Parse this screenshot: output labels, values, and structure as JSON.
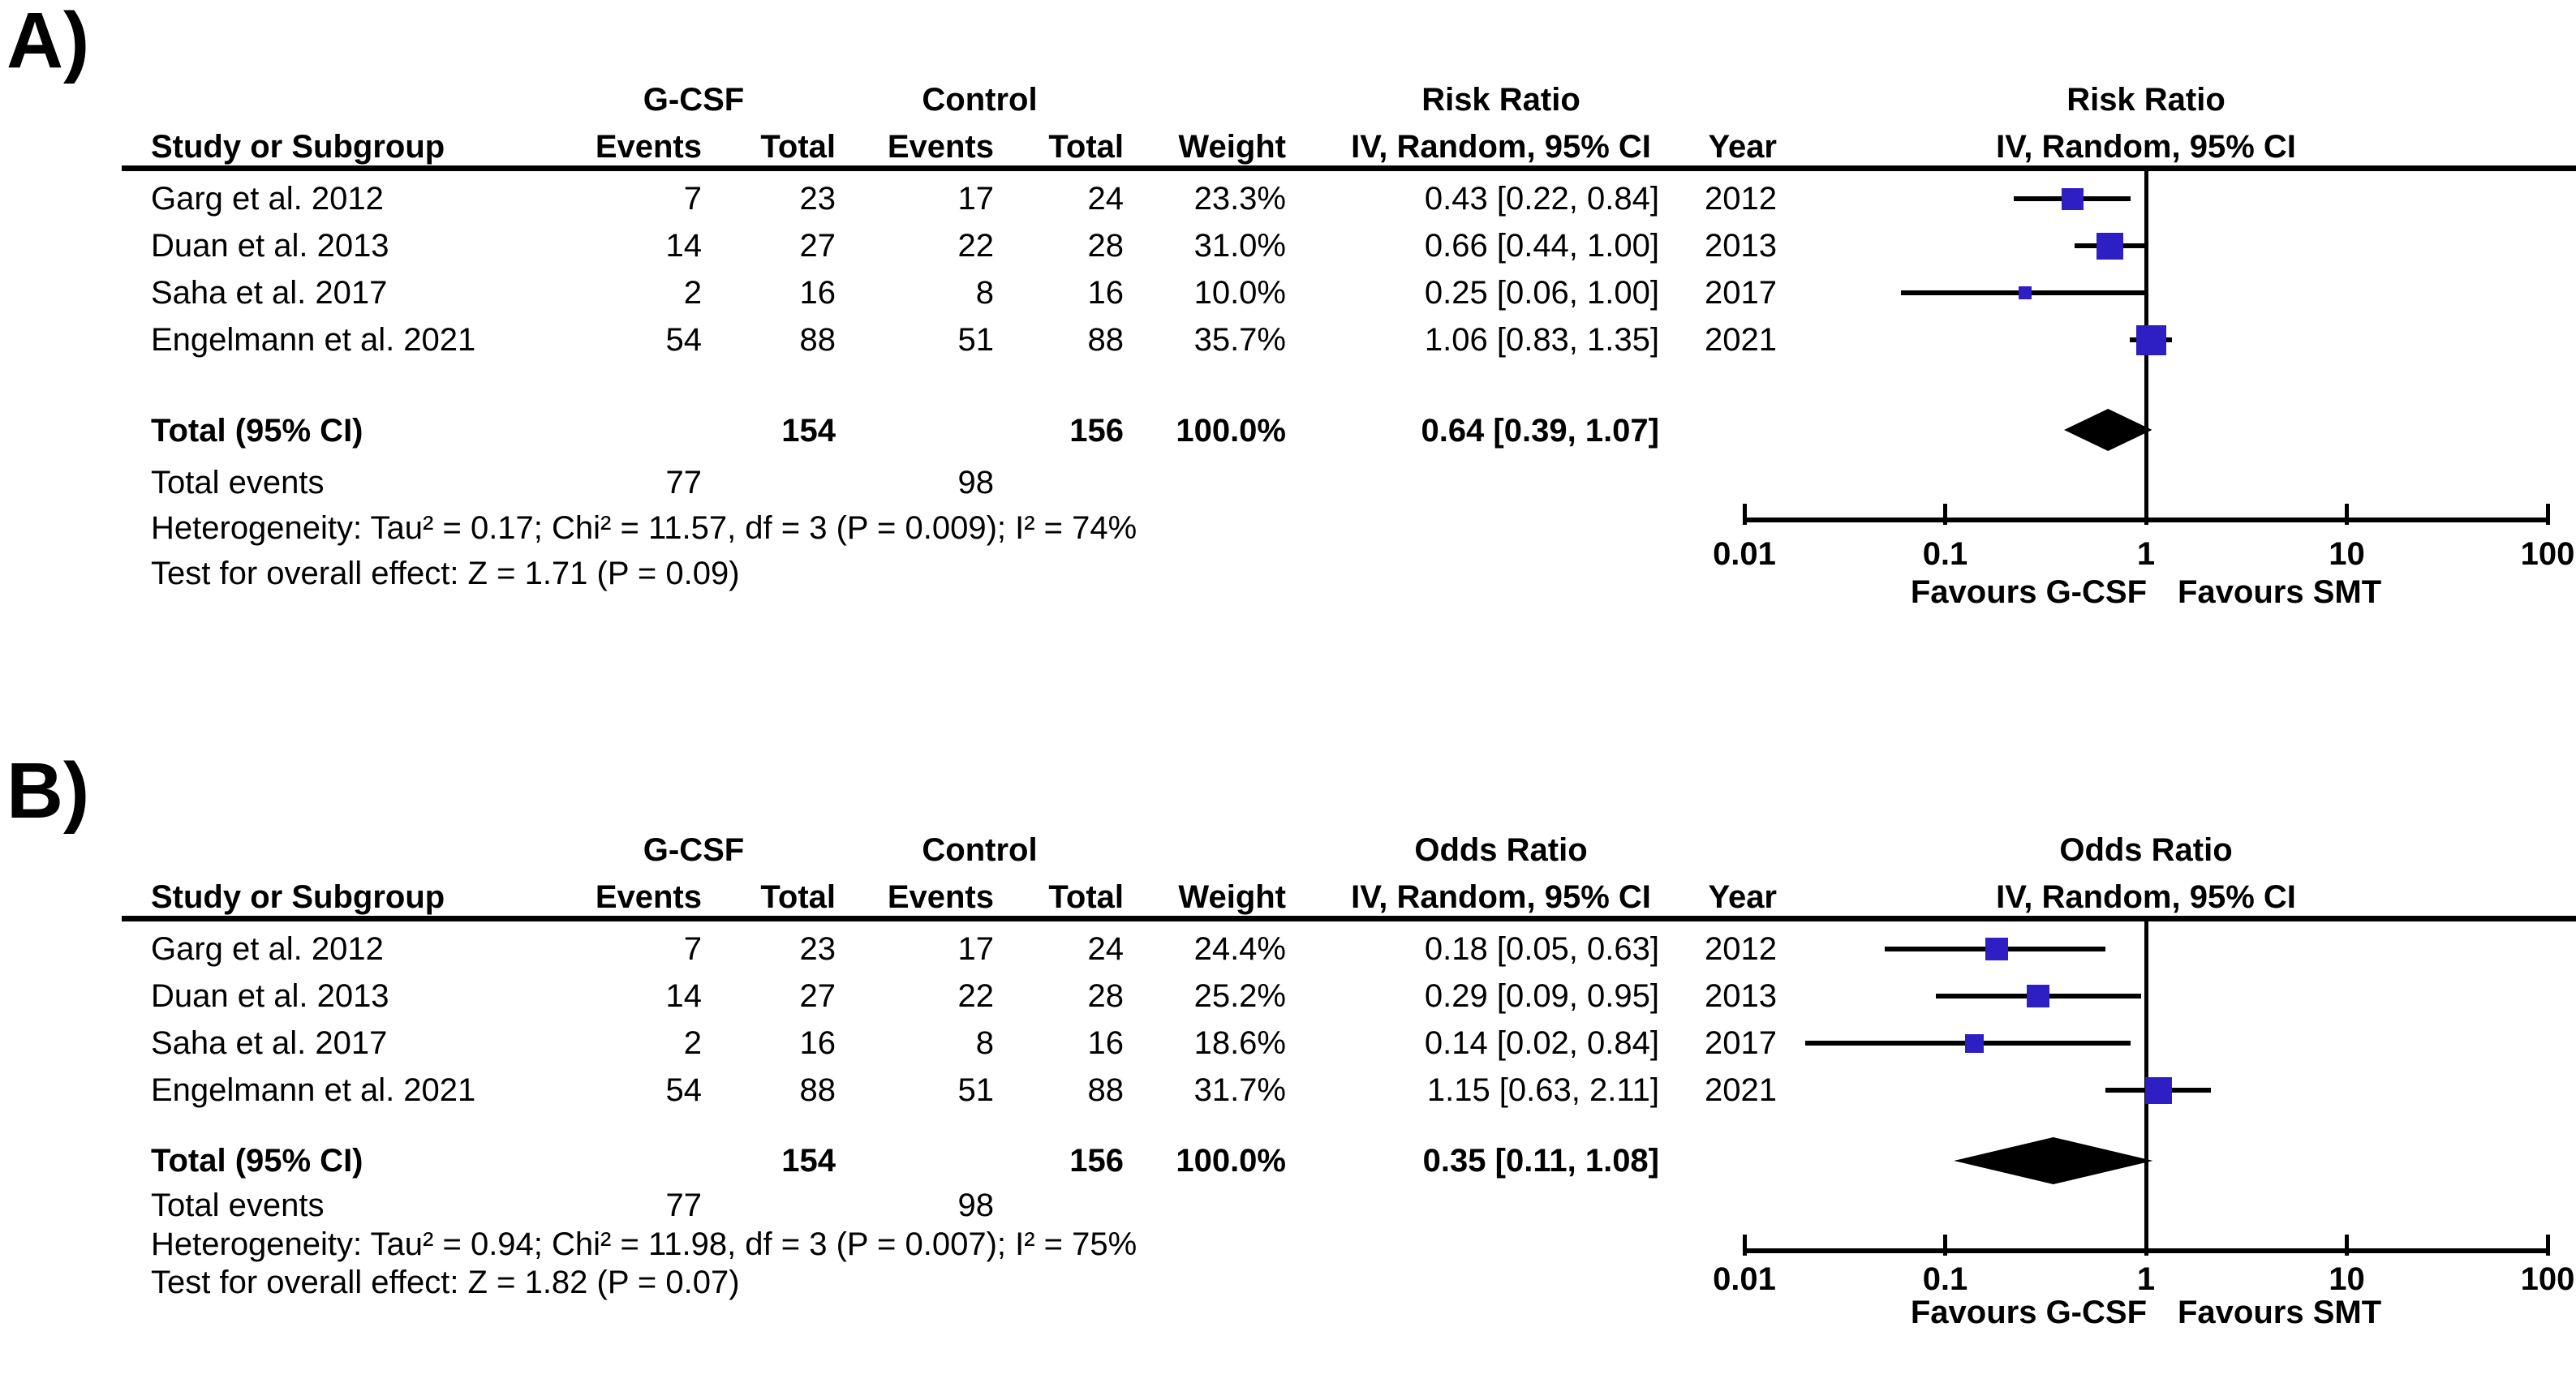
{
  "colors": {
    "marker_blue": "#2e1fc4",
    "line_black": "#000000",
    "background": "#ffffff"
  },
  "figure": {
    "panels": [
      {
        "panel_label": "A)",
        "table": {
          "group1_header": "G-CSF",
          "group2_header": "Control",
          "effect_header": "Risk Ratio",
          "method_header": "IV, Random, 95% CI",
          "study_col_header": "Study or Subgroup",
          "events_col_header": "Events",
          "total_col_header": "Total",
          "weight_col_header": "Weight",
          "year_col_header": "Year",
          "rows": [
            {
              "study": "Garg et al. 2012",
              "g1_events": "7",
              "g1_total": "23",
              "g2_events": "17",
              "g2_total": "24",
              "weight": "23.3%",
              "estimate_ci": "0.43 [0.22, 0.84]",
              "year": "2012"
            },
            {
              "study": "Duan et al. 2013",
              "g1_events": "14",
              "g1_total": "27",
              "g2_events": "22",
              "g2_total": "28",
              "weight": "31.0%",
              "estimate_ci": "0.66 [0.44, 1.00]",
              "year": "2013"
            },
            {
              "study": "Saha et al. 2017",
              "g1_events": "2",
              "g1_total": "16",
              "g2_events": "8",
              "g2_total": "16",
              "weight": "10.0%",
              "estimate_ci": "0.25 [0.06, 1.00]",
              "year": "2017"
            },
            {
              "study": "Engelmann et al. 2021",
              "g1_events": "54",
              "g1_total": "88",
              "g2_events": "51",
              "g2_total": "88",
              "weight": "35.7%",
              "estimate_ci": "1.06 [0.83, 1.35]",
              "year": "2021"
            }
          ],
          "total_row": {
            "label": "Total (95% CI)",
            "g1_total": "154",
            "g2_total": "156",
            "weight": "100.0%",
            "estimate_ci": "0.64 [0.39, 1.07]"
          },
          "total_events_row": {
            "label": "Total events",
            "g1_events": "77",
            "g2_events": "98"
          },
          "heterogeneity_text": "Heterogeneity: Tau² = 0.17; Chi² = 11.57, df = 3 (P = 0.009); I² = 74%",
          "overall_effect_text": "Test for overall effect: Z = 1.71 (P = 0.09)"
        },
        "plot": {
          "effect_header": "Risk Ratio",
          "method_header": "IV, Random, 95% CI",
          "favours_left": "Favours G-CSF",
          "favours_right": "Favours SMT"
        }
      },
      {
        "panel_label": "B)",
        "table": {
          "group1_header": "G-CSF",
          "group2_header": "Control",
          "effect_header": "Odds Ratio",
          "method_header": "IV, Random, 95% CI",
          "study_col_header": "Study or Subgroup",
          "events_col_header": "Events",
          "total_col_header": "Total",
          "weight_col_header": "Weight",
          "year_col_header": "Year",
          "rows": [
            {
              "study": "Garg et al. 2012",
              "g1_events": "7",
              "g1_total": "23",
              "g2_events": "17",
              "g2_total": "24",
              "weight": "24.4%",
              "estimate_ci": "0.18 [0.05, 0.63]",
              "year": "2012"
            },
            {
              "study": "Duan et al. 2013",
              "g1_events": "14",
              "g1_total": "27",
              "g2_events": "22",
              "g2_total": "28",
              "weight": "25.2%",
              "estimate_ci": "0.29 [0.09, 0.95]",
              "year": "2013"
            },
            {
              "study": "Saha et al. 2017",
              "g1_events": "2",
              "g1_total": "16",
              "g2_events": "8",
              "g2_total": "16",
              "weight": "18.6%",
              "estimate_ci": "0.14 [0.02, 0.84]",
              "year": "2017"
            },
            {
              "study": "Engelmann et al. 2021",
              "g1_events": "54",
              "g1_total": "88",
              "g2_events": "51",
              "g2_total": "88",
              "weight": "31.7%",
              "estimate_ci": "1.15 [0.63, 2.11]",
              "year": "2021"
            }
          ],
          "total_row": {
            "label": "Total (95% CI)",
            "g1_total": "154",
            "g2_total": "156",
            "weight": "100.0%",
            "estimate_ci": "0.35 [0.11, 1.08]"
          },
          "total_events_row": {
            "label": "Total events",
            "g1_events": "77",
            "g2_events": "98"
          },
          "heterogeneity_text": "Heterogeneity: Tau² = 0.94; Chi² = 11.98, df = 3 (P = 0.007); I² = 75%",
          "overall_effect_text": "Test for overall effect: Z = 1.82 (P = 0.07)"
        },
        "plot": {
          "effect_header": "Odds Ratio",
          "method_header": "IV, Random, 95% CI",
          "favours_left": "Favours G-CSF",
          "favours_right": "Favours SMT"
        }
      }
    ]
  },
  "chart_data": [
    {
      "type": "scatter",
      "subtype": "forest_plot",
      "title": "Risk Ratio — IV, Random, 95% CI",
      "x_scale": "log10",
      "xlim": [
        0.01,
        100
      ],
      "x_ticks": [
        0.01,
        0.1,
        1,
        10,
        100
      ],
      "reference_line": 1,
      "xlabel_left": "Favours G-CSF",
      "xlabel_right": "Favours SMT",
      "points": [
        {
          "study": "Garg et al. 2012",
          "estimate": 0.43,
          "ci_low": 0.22,
          "ci_high": 0.84,
          "weight_pct": 23.3,
          "year": 2012
        },
        {
          "study": "Duan et al. 2013",
          "estimate": 0.66,
          "ci_low": 0.44,
          "ci_high": 1.0,
          "weight_pct": 31.0,
          "year": 2013
        },
        {
          "study": "Saha et al. 2017",
          "estimate": 0.25,
          "ci_low": 0.06,
          "ci_high": 1.0,
          "weight_pct": 10.0,
          "year": 2017
        },
        {
          "study": "Engelmann et al. 2021",
          "estimate": 1.06,
          "ci_low": 0.83,
          "ci_high": 1.35,
          "weight_pct": 35.7,
          "year": 2021
        }
      ],
      "summary": {
        "label": "Total (95% CI)",
        "estimate": 0.64,
        "ci_low": 0.39,
        "ci_high": 1.07
      }
    },
    {
      "type": "scatter",
      "subtype": "forest_plot",
      "title": "Odds Ratio — IV, Random, 95% CI",
      "x_scale": "log10",
      "xlim": [
        0.01,
        100
      ],
      "x_ticks": [
        0.01,
        0.1,
        1,
        10,
        100
      ],
      "reference_line": 1,
      "xlabel_left": "Favours G-CSF",
      "xlabel_right": "Favours SMT",
      "points": [
        {
          "study": "Garg et al. 2012",
          "estimate": 0.18,
          "ci_low": 0.05,
          "ci_high": 0.63,
          "weight_pct": 24.4,
          "year": 2012
        },
        {
          "study": "Duan et al. 2013",
          "estimate": 0.29,
          "ci_low": 0.09,
          "ci_high": 0.95,
          "weight_pct": 25.2,
          "year": 2013
        },
        {
          "study": "Saha et al. 2017",
          "estimate": 0.14,
          "ci_low": 0.02,
          "ci_high": 0.84,
          "weight_pct": 18.6,
          "year": 2017
        },
        {
          "study": "Engelmann et al. 2021",
          "estimate": 1.15,
          "ci_low": 0.63,
          "ci_high": 2.11,
          "weight_pct": 31.7,
          "year": 2021
        }
      ],
      "summary": {
        "label": "Total (95% CI)",
        "estimate": 0.35,
        "ci_low": 0.11,
        "ci_high": 1.08
      }
    }
  ]
}
